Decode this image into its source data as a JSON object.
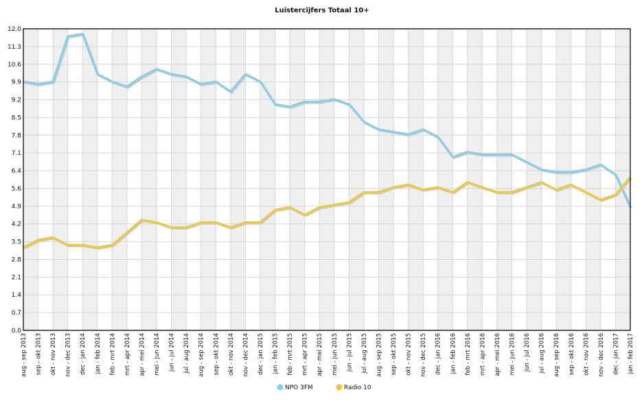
{
  "chart_data": {
    "type": "line",
    "title": "Luistercijfers Totaal 10+",
    "xlabel": "",
    "ylabel": "",
    "ylim": [
      0,
      12
    ],
    "yticks": [
      "0.0",
      "0.7",
      "1.4",
      "2.1",
      "2.8",
      "3.5",
      "4.2",
      "4.9",
      "5.6",
      "6.4",
      "7.1",
      "7.8",
      "8.5",
      "9.2",
      "9.9",
      "10.6",
      "11.3",
      "12.0"
    ],
    "ytick_values": [
      0,
      0.706,
      1.412,
      2.118,
      2.824,
      3.529,
      4.235,
      4.941,
      5.647,
      6.353,
      7.059,
      7.765,
      8.471,
      9.176,
      9.882,
      10.588,
      11.294,
      12.0
    ],
    "grid": true,
    "legend_position": "bottom-center",
    "categories": [
      "aug - sep 2013",
      "sep - okt 2013",
      "okt - nov 2013",
      "nov - dec 2013",
      "dec - jan 2014",
      "jan - feb 2014",
      "feb - mrt 2014",
      "mrt - apr 2014",
      "apr - mei 2014",
      "mei - jun 2014",
      "jun - jul 2014",
      "jul - aug 2014",
      "aug - sep 2014",
      "sep - okt 2014",
      "okt - nov 2014",
      "nov - dec 2014",
      "dec - jan 2015",
      "jan - feb 2015",
      "feb - mrt 2015",
      "mrt - apr 2015",
      "apr - mei 2015",
      "mei - jun 2015",
      "jun - jul 2015",
      "jul - aug 2015",
      "aug - sep 2015",
      "sep - okt 2015",
      "okt - nov 2015",
      "nov - dec 2015",
      "dec - jan 2016",
      "jan - feb 2016",
      "feb - mrt 2016",
      "mrt - apr 2016",
      "apr - mei 2016",
      "mei - jun 2016",
      "jun - jul 2016",
      "jul - aug 2016",
      "aug - sep 2016",
      "sep - okt 2016",
      "okt - nov 2016",
      "nov - dec 2016",
      "dec - jan 2017",
      "jan - feb 2017"
    ],
    "series": [
      {
        "name": "NPO 3FM",
        "color": "#87ceeb",
        "values": [
          9.9,
          9.8,
          9.9,
          11.7,
          11.8,
          10.2,
          9.9,
          9.7,
          10.1,
          10.4,
          10.2,
          10.1,
          9.8,
          9.9,
          9.5,
          10.2,
          9.9,
          9.0,
          8.9,
          9.1,
          9.1,
          9.2,
          9.0,
          8.3,
          8.0,
          7.9,
          7.8,
          8.0,
          7.7,
          6.9,
          7.1,
          7.0,
          7.0,
          7.0,
          6.7,
          6.4,
          6.3,
          6.3,
          6.4,
          6.6,
          6.2,
          4.9
        ]
      },
      {
        "name": "Radio 10",
        "color": "#f0c93a",
        "values": [
          3.3,
          3.6,
          3.7,
          3.4,
          3.4,
          3.3,
          3.4,
          3.9,
          4.4,
          4.3,
          4.1,
          4.1,
          4.3,
          4.3,
          4.1,
          4.3,
          4.3,
          4.8,
          4.9,
          4.6,
          4.9,
          5.0,
          5.1,
          5.5,
          5.5,
          5.7,
          5.8,
          5.6,
          5.7,
          5.5,
          5.9,
          5.7,
          5.5,
          5.5,
          5.7,
          5.9,
          5.6,
          5.8,
          5.5,
          5.2,
          5.4,
          6.1
        ]
      }
    ]
  }
}
